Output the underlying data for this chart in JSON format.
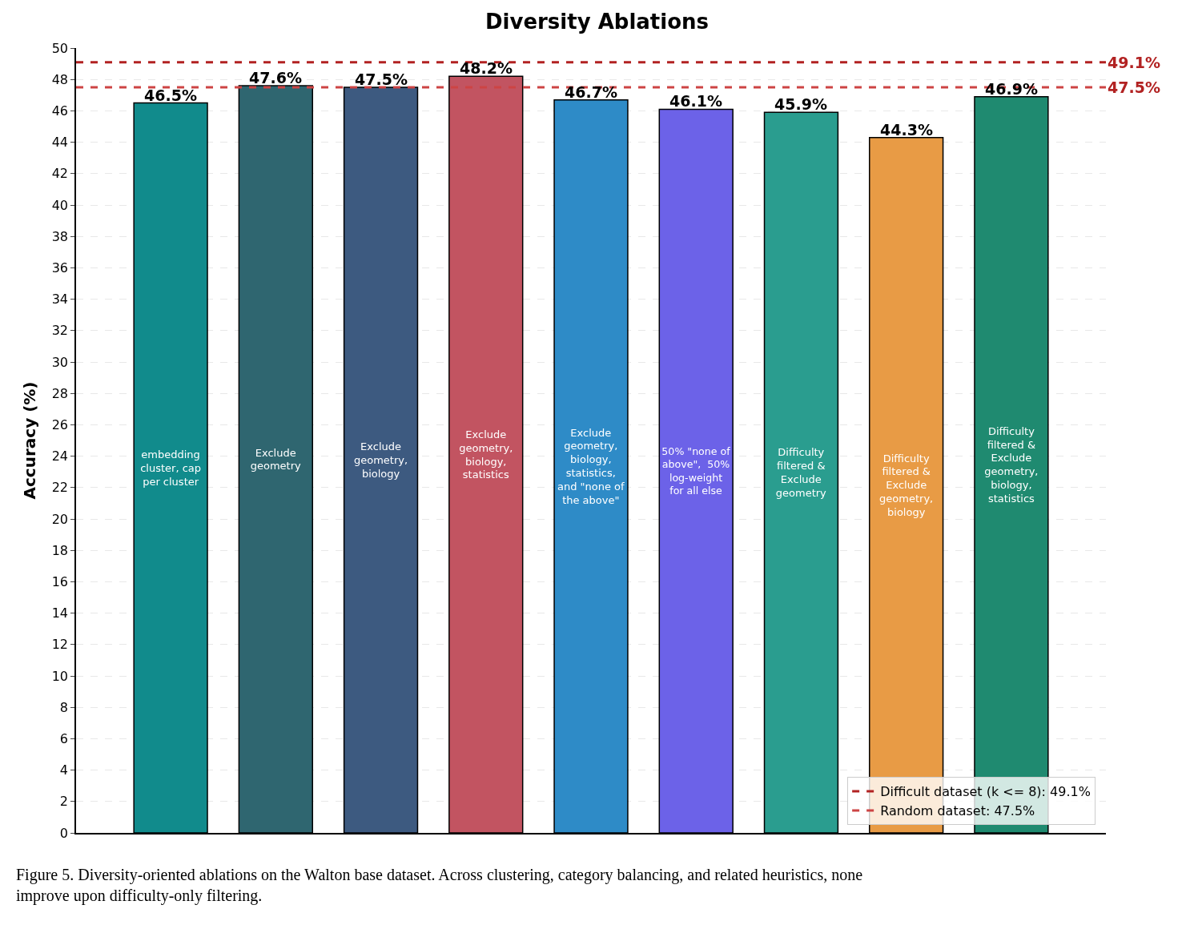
{
  "chart_data": {
    "type": "bar",
    "title": "Diversity Ablations",
    "ylabel": "Accuracy (%)",
    "categories": [
      "embedding\ncluster, cap\nper cluster",
      "Exclude\ngeometry",
      "Exclude\ngeometry,\nbiology",
      "Exclude\ngeometry,\nbiology,\nstatistics",
      "Exclude\ngeometry,\nbiology,\nstatistics,\nand \"none of\nthe above\"",
      "50% \"none of\nabove\",  50%\nlog-weight\nfor all else",
      "Difficulty\nfiltered &\nExclude\ngeometry",
      "Difficulty\nfiltered &\nExclude\ngeometry,\nbiology",
      "Difficulty\nfiltered &\nExclude\ngeometry,\nbiology,\nstatistics"
    ],
    "values": [
      46.5,
      47.6,
      47.5,
      48.2,
      46.7,
      46.1,
      45.9,
      44.3,
      46.9
    ],
    "value_labels": [
      "46.5%",
      "47.6%",
      "47.5%",
      "48.2%",
      "46.7%",
      "46.1%",
      "45.9%",
      "44.3%",
      "46.9%"
    ],
    "colors": [
      "#118b8c",
      "#2f6670",
      "#3d5a80",
      "#c25461",
      "#2e8bc7",
      "#6c62e8",
      "#2a9d8f",
      "#e89b45",
      "#1f8a70"
    ],
    "ylim": [
      0,
      50
    ],
    "yticks": [
      0,
      2,
      4,
      6,
      8,
      10,
      12,
      14,
      16,
      18,
      20,
      22,
      24,
      26,
      28,
      30,
      32,
      34,
      36,
      38,
      40,
      42,
      44,
      46,
      48,
      50
    ],
    "ref_lines": [
      {
        "axis": "y",
        "value": 49.1,
        "label": "Difficult dataset (k <= 8): 49.1%",
        "color": "#b22222",
        "line_style": "dashed"
      },
      {
        "axis": "y",
        "value": 47.5,
        "label": "Random dataset: 47.5%",
        "color": "#cd4444",
        "line_style": "dashed"
      }
    ],
    "annotations": [
      "49.1%",
      "47.5%",
      "Figure 5. Diversity-oriented ablations on the Walton base dataset. Across clustering, category balancing, and related heuristics, none\nimprove upon difficulty-only filtering."
    ],
    "grid": "y",
    "legend": "bottom right",
    "tick_labels": "y"
  }
}
